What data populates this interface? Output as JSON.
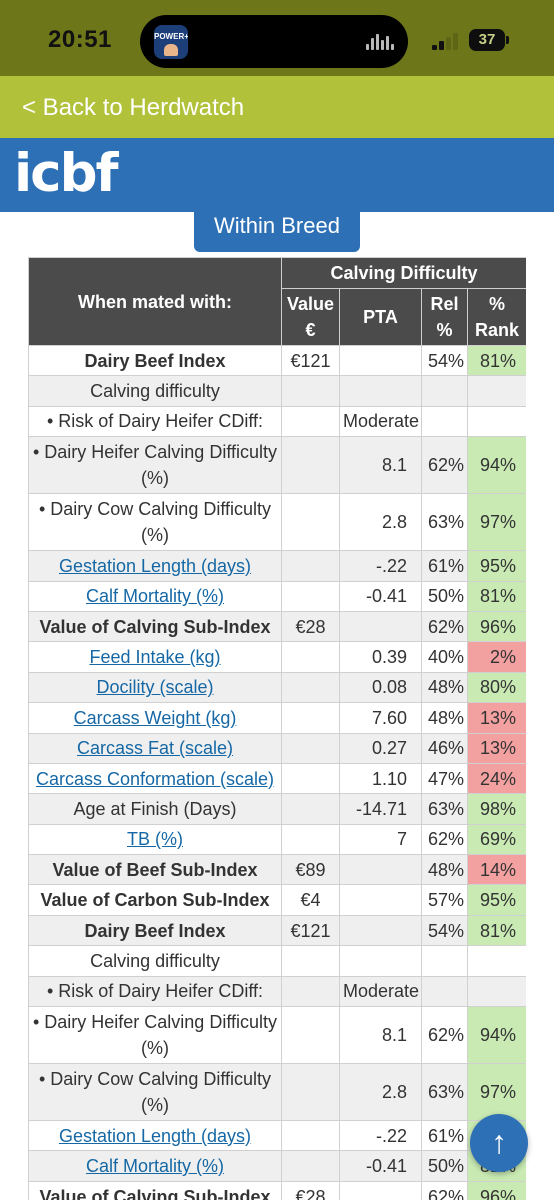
{
  "status_bar": {
    "time": "20:51",
    "battery": "37",
    "app_badge": "POWER+"
  },
  "nav": {
    "back_label": "< Back to Herdwatch"
  },
  "brand": {
    "logo_text": "icbf"
  },
  "tab": {
    "label": "Within Breed"
  },
  "table": {
    "header_first": "When mated with:",
    "group_header": "Calving Difficulty",
    "col_value": "Value €",
    "col_pta": "PTA",
    "col_rel": "Rel %",
    "col_rank": "% Rank",
    "rows": [
      {
        "label": "Dairy Beef Index",
        "value": "€121",
        "pta": "",
        "rel": "54%",
        "rank": "81%",
        "rank_color": "green",
        "bold": true,
        "link": false,
        "tall": false
      },
      {
        "label": "Calving difficulty",
        "value": "",
        "pta": "",
        "rel": "",
        "rank": "",
        "rank_color": "",
        "bold": false,
        "link": false,
        "tall": false
      },
      {
        "label": "• Risk of Dairy Heifer CDiff:",
        "value": "",
        "pta": "Moderate",
        "rel": "",
        "rank": "",
        "rank_color": "",
        "bold": false,
        "link": false,
        "tall": false
      },
      {
        "label": "• Dairy Heifer Calving Difficulty (%)",
        "value": "",
        "pta": "8.1",
        "rel": "62%",
        "rank": "94%",
        "rank_color": "green",
        "bold": false,
        "link": false,
        "tall": true
      },
      {
        "label": "• Dairy Cow Calving Difficulty (%)",
        "value": "",
        "pta": "2.8",
        "rel": "63%",
        "rank": "97%",
        "rank_color": "green",
        "bold": false,
        "link": false,
        "tall": true
      },
      {
        "label": "Gestation Length (days)",
        "value": "",
        "pta": "-.22",
        "rel": "61%",
        "rank": "95%",
        "rank_color": "green",
        "bold": false,
        "link": true,
        "tall": false
      },
      {
        "label": "Calf Mortality (%)",
        "value": "",
        "pta": "-0.41",
        "rel": "50%",
        "rank": "81%",
        "rank_color": "green",
        "bold": false,
        "link": true,
        "tall": false
      },
      {
        "label": "Value of Calving Sub-Index",
        "value": "€28",
        "pta": "",
        "rel": "62%",
        "rank": "96%",
        "rank_color": "green",
        "bold": true,
        "link": false,
        "tall": false
      },
      {
        "label": "Feed Intake (kg)",
        "value": "",
        "pta": "0.39",
        "rel": "40%",
        "rank": "2%",
        "rank_color": "red",
        "bold": false,
        "link": true,
        "tall": false
      },
      {
        "label": "Docility (scale)",
        "value": "",
        "pta": "0.08",
        "rel": "48%",
        "rank": "80%",
        "rank_color": "green",
        "bold": false,
        "link": true,
        "tall": false
      },
      {
        "label": "Carcass Weight (kg)",
        "value": "",
        "pta": "7.60",
        "rel": "48%",
        "rank": "13%",
        "rank_color": "red",
        "bold": false,
        "link": true,
        "tall": false
      },
      {
        "label": "Carcass Fat (scale)",
        "value": "",
        "pta": "0.27",
        "rel": "46%",
        "rank": "13%",
        "rank_color": "red",
        "bold": false,
        "link": true,
        "tall": false
      },
      {
        "label": "Carcass Conformation (scale)",
        "value": "",
        "pta": "1.10",
        "rel": "47%",
        "rank": "24%",
        "rank_color": "red",
        "bold": false,
        "link": true,
        "tall": false
      },
      {
        "label": "Age at Finish (Days)",
        "value": "",
        "pta": "-14.71",
        "rel": "63%",
        "rank": "98%",
        "rank_color": "green",
        "bold": false,
        "link": false,
        "tall": false
      },
      {
        "label": "TB (%)",
        "value": "",
        "pta": "7",
        "rel": "62%",
        "rank": "69%",
        "rank_color": "green",
        "bold": false,
        "link": true,
        "tall": false
      },
      {
        "label": "Value of Beef Sub-Index",
        "value": "€89",
        "pta": "",
        "rel": "48%",
        "rank": "14%",
        "rank_color": "red",
        "bold": true,
        "link": false,
        "tall": false
      },
      {
        "label": "Value of Carbon Sub-Index",
        "value": "€4",
        "pta": "",
        "rel": "57%",
        "rank": "95%",
        "rank_color": "green",
        "bold": true,
        "link": false,
        "tall": false
      },
      {
        "label": "Dairy Beef Index",
        "value": "€121",
        "pta": "",
        "rel": "54%",
        "rank": "81%",
        "rank_color": "green",
        "bold": true,
        "link": false,
        "tall": false
      },
      {
        "label": "Calving difficulty",
        "value": "",
        "pta": "",
        "rel": "",
        "rank": "",
        "rank_color": "",
        "bold": false,
        "link": false,
        "tall": false
      },
      {
        "label": "• Risk of Dairy Heifer CDiff:",
        "value": "",
        "pta": "Moderate",
        "rel": "",
        "rank": "",
        "rank_color": "",
        "bold": false,
        "link": false,
        "tall": false
      },
      {
        "label": "• Dairy Heifer Calving Difficulty (%)",
        "value": "",
        "pta": "8.1",
        "rel": "62%",
        "rank": "94%",
        "rank_color": "green",
        "bold": false,
        "link": false,
        "tall": true
      },
      {
        "label": "• Dairy Cow Calving Difficulty (%)",
        "value": "",
        "pta": "2.8",
        "rel": "63%",
        "rank": "97%",
        "rank_color": "green",
        "bold": false,
        "link": false,
        "tall": true
      },
      {
        "label": "Gestation Length (days)",
        "value": "",
        "pta": "-.22",
        "rel": "61%",
        "rank": "",
        "rank_color": "green",
        "bold": false,
        "link": true,
        "tall": false
      },
      {
        "label": "Calf Mortality (%)",
        "value": "",
        "pta": "-0.41",
        "rel": "50%",
        "rank": "81%",
        "rank_color": "green",
        "bold": false,
        "link": true,
        "tall": false
      },
      {
        "label": "Value of Calving Sub-Index",
        "value": "€28",
        "pta": "",
        "rel": "62%",
        "rank": "96%",
        "rank_color": "green",
        "bold": true,
        "link": false,
        "tall": false
      }
    ]
  },
  "scroll_top": {
    "icon": "up-arrow-icon",
    "glyph": "↑"
  },
  "colors": {
    "status_bar": "#6d7619",
    "back_bar": "#b1c13a",
    "brand_blue": "#2d70b6",
    "header_gray": "#4b4b4b",
    "rank_green": "#c9eab3",
    "rank_red": "#f3a0a0",
    "link": "#1568a5"
  }
}
